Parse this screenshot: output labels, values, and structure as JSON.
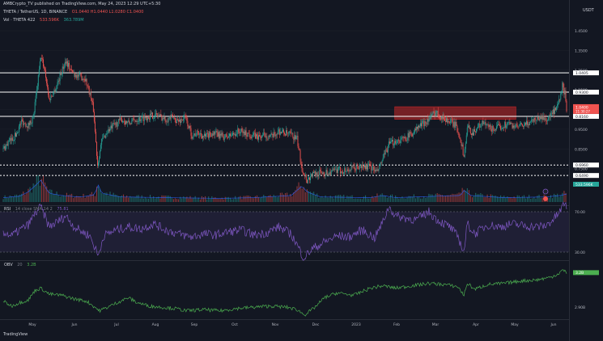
{
  "header": {
    "publisher_line": "AMBCrypto_TV published on TradingView.com, May 24, 2023 12:29 UTC+5:30",
    "symbol_label": "THETA / TetherUS, 1D, BINANCE",
    "ohlc_label": "O1.0440 H1.0440 L1.0280 C1.0400",
    "volume_label": "Vol · THETA 422",
    "volume_values": [
      "533.596K",
      "363.789M"
    ]
  },
  "price_axis": {
    "currency": "USDT",
    "labels": [
      "1.4500",
      "1.3500",
      "1.2500",
      "1.1500",
      "1.0500",
      "0.9500",
      "0.8500",
      "0.7500"
    ],
    "level_labels": [
      "1.0405",
      "0.9300",
      "0.8160",
      "0.6960",
      "0.6490"
    ],
    "current_price": "1.0400",
    "current_sub": "11:30:27",
    "volume_tag": "533.596K"
  },
  "levels": [
    {
      "value": 1.236,
      "style": "solid"
    },
    {
      "value": 1.138,
      "style": "solid"
    },
    {
      "value": 1.015,
      "style": "solid"
    },
    {
      "value": 0.768,
      "style": "dotted"
    },
    {
      "value": 0.715,
      "style": "dotted"
    }
  ],
  "zone": {
    "low": 1.0,
    "high": 1.064,
    "x_start": 0.695,
    "x_end": 0.91
  },
  "rsi": {
    "label": "RSI",
    "params": "14 close SMA 14 2",
    "value": "75.81",
    "axis_labels": [
      "70.00",
      "30.00"
    ]
  },
  "obv": {
    "label": "OBV",
    "params": "20",
    "value": "3.2B",
    "axis_labels": [
      "3.20B",
      "2.90B"
    ]
  },
  "time_axis": [
    "May",
    "Jun",
    "Jul",
    "Aug",
    "Sep",
    "Oct",
    "Nov",
    "Dec",
    "2023",
    "Feb",
    "Mar",
    "Apr",
    "May",
    "Jun"
  ],
  "footer": "TradingView",
  "colors": {
    "background": "#131722",
    "up": "#26a69a",
    "down": "#ef5350",
    "rsi_line": "#7e57c2",
    "obv_line": "#4caf50",
    "zone": "#c62828"
  },
  "chart_data": {
    "type": "candlestick",
    "title": "THETA / TetherUS, 1D, BINANCE",
    "xlabel": "",
    "ylabel": "USDT",
    "ylim": [
      0.65,
      1.45
    ],
    "rsi_range": [
      0,
      100
    ],
    "series": [
      {
        "name": "THETA / TetherUS",
        "anchors": [
          [
            0,
            0.85
          ],
          [
            8,
            0.89
          ],
          [
            15,
            0.92
          ],
          [
            22,
            0.99
          ],
          [
            30,
            0.97
          ],
          [
            36,
            1.01
          ],
          [
            40,
            1.14
          ],
          [
            45,
            1.32
          ],
          [
            50,
            1.25
          ],
          [
            55,
            1.1
          ],
          [
            62,
            1.15
          ],
          [
            68,
            1.22
          ],
          [
            75,
            1.3
          ],
          [
            82,
            1.24
          ],
          [
            90,
            1.22
          ],
          [
            98,
            1.21
          ],
          [
            104,
            1.13
          ],
          [
            108,
            1.05
          ],
          [
            113,
            0.77
          ],
          [
            118,
            0.89
          ],
          [
            125,
            0.94
          ],
          [
            133,
            0.97
          ],
          [
            142,
            1.0
          ],
          [
            150,
            0.98
          ],
          [
            160,
            1.0
          ],
          [
            170,
            1.01
          ],
          [
            178,
            1.02
          ],
          [
            186,
            1.02
          ],
          [
            194,
            1.0
          ],
          [
            202,
            1.01
          ],
          [
            210,
            0.99
          ],
          [
            218,
            1.01
          ],
          [
            226,
            0.92
          ],
          [
            234,
            0.93
          ],
          [
            242,
            0.91
          ],
          [
            250,
            0.93
          ],
          [
            258,
            0.92
          ],
          [
            266,
            0.91
          ],
          [
            274,
            0.92
          ],
          [
            282,
            0.94
          ],
          [
            290,
            0.93
          ],
          [
            298,
            0.92
          ],
          [
            306,
            0.91
          ],
          [
            314,
            0.92
          ],
          [
            322,
            0.91
          ],
          [
            330,
            0.94
          ],
          [
            338,
            0.93
          ],
          [
            345,
            0.92
          ],
          [
            352,
            0.9
          ],
          [
            358,
            0.75
          ],
          [
            364,
            0.69
          ],
          [
            370,
            0.72
          ],
          [
            380,
            0.73
          ],
          [
            390,
            0.73
          ],
          [
            400,
            0.74
          ],
          [
            410,
            0.74
          ],
          [
            420,
            0.75
          ],
          [
            430,
            0.76
          ],
          [
            440,
            0.76
          ],
          [
            448,
            0.73
          ],
          [
            455,
            0.8
          ],
          [
            462,
            0.87
          ],
          [
            470,
            0.89
          ],
          [
            480,
            0.9
          ],
          [
            490,
            0.93
          ],
          [
            500,
            0.97
          ],
          [
            510,
            1.0
          ],
          [
            518,
            1.04
          ],
          [
            526,
            1.01
          ],
          [
            534,
            0.99
          ],
          [
            542,
            0.97
          ],
          [
            548,
            0.9
          ],
          [
            552,
            0.81
          ],
          [
            556,
            0.96
          ],
          [
            562,
            0.93
          ],
          [
            568,
            0.96
          ],
          [
            575,
            0.98
          ],
          [
            585,
            0.95
          ],
          [
            595,
            0.96
          ],
          [
            605,
            0.98
          ],
          [
            615,
            0.96
          ],
          [
            625,
            0.97
          ],
          [
            635,
            1.0
          ],
          [
            645,
            1.01
          ],
          [
            652,
            1.0
          ],
          [
            658,
            1.03
          ],
          [
            663,
            1.05
          ],
          [
            667,
            1.1
          ],
          [
            670,
            1.17
          ],
          [
            673,
            1.13
          ],
          [
            675,
            1.04
          ]
        ]
      },
      {
        "name": "Vol · THETA",
        "anchors": [
          [
            0,
            6
          ],
          [
            20,
            8
          ],
          [
            30,
            14
          ],
          [
            38,
            22
          ],
          [
            45,
            30
          ],
          [
            55,
            12
          ],
          [
            70,
            9
          ],
          [
            90,
            7
          ],
          [
            100,
            8
          ],
          [
            110,
            10
          ],
          [
            113,
            26
          ],
          [
            118,
            12
          ],
          [
            140,
            7
          ],
          [
            200,
            6
          ],
          [
            260,
            5
          ],
          [
            300,
            6
          ],
          [
            345,
            9
          ],
          [
            358,
            22
          ],
          [
            364,
            14
          ],
          [
            380,
            7
          ],
          [
            440,
            6
          ],
          [
            455,
            9
          ],
          [
            470,
            6
          ],
          [
            520,
            8
          ],
          [
            548,
            9
          ],
          [
            552,
            16
          ],
          [
            560,
            9
          ],
          [
            600,
            6
          ],
          [
            650,
            7
          ],
          [
            668,
            9
          ],
          [
            675,
            11
          ]
        ]
      },
      {
        "name": "RSI",
        "anchors": [
          [
            0,
            50
          ],
          [
            10,
            46
          ],
          [
            20,
            52
          ],
          [
            30,
            57
          ],
          [
            38,
            68
          ],
          [
            45,
            75
          ],
          [
            55,
            55
          ],
          [
            65,
            60
          ],
          [
            75,
            66
          ],
          [
            85,
            55
          ],
          [
            95,
            50
          ],
          [
            104,
            46
          ],
          [
            110,
            34
          ],
          [
            114,
            26
          ],
          [
            120,
            46
          ],
          [
            135,
            52
          ],
          [
            150,
            55
          ],
          [
            165,
            53
          ],
          [
            180,
            58
          ],
          [
            195,
            52
          ],
          [
            210,
            48
          ],
          [
            225,
            45
          ],
          [
            240,
            48
          ],
          [
            255,
            47
          ],
          [
            270,
            50
          ],
          [
            285,
            52
          ],
          [
            300,
            47
          ],
          [
            315,
            49
          ],
          [
            330,
            55
          ],
          [
            345,
            48
          ],
          [
            354,
            34
          ],
          [
            360,
            24
          ],
          [
            370,
            33
          ],
          [
            385,
            40
          ],
          [
            400,
            46
          ],
          [
            415,
            45
          ],
          [
            430,
            52
          ],
          [
            445,
            44
          ],
          [
            455,
            60
          ],
          [
            462,
            75
          ],
          [
            470,
            66
          ],
          [
            480,
            64
          ],
          [
            495,
            62
          ],
          [
            510,
            70
          ],
          [
            520,
            62
          ],
          [
            535,
            55
          ],
          [
            545,
            45
          ],
          [
            552,
            30
          ],
          [
            556,
            58
          ],
          [
            565,
            48
          ],
          [
            580,
            57
          ],
          [
            595,
            55
          ],
          [
            610,
            58
          ],
          [
            625,
            56
          ],
          [
            640,
            55
          ],
          [
            650,
            56
          ],
          [
            660,
            63
          ],
          [
            667,
            70
          ],
          [
            672,
            78
          ],
          [
            675,
            76
          ]
        ]
      },
      {
        "name": "OBV",
        "anchors": [
          [
            0,
            2.95
          ],
          [
            10,
            2.91
          ],
          [
            20,
            2.94
          ],
          [
            30,
            2.96
          ],
          [
            38,
            3.04
          ],
          [
            45,
            3.06
          ],
          [
            55,
            3.01
          ],
          [
            70,
            3.0
          ],
          [
            85,
            2.97
          ],
          [
            100,
            2.95
          ],
          [
            110,
            2.9
          ],
          [
            115,
            2.87
          ],
          [
            125,
            2.9
          ],
          [
            140,
            2.95
          ],
          [
            150,
            2.98
          ],
          [
            160,
            2.94
          ],
          [
            175,
            2.91
          ],
          [
            190,
            2.9
          ],
          [
            205,
            2.89
          ],
          [
            220,
            2.87
          ],
          [
            240,
            2.88
          ],
          [
            260,
            2.87
          ],
          [
            280,
            2.89
          ],
          [
            300,
            2.9
          ],
          [
            320,
            2.91
          ],
          [
            340,
            2.9
          ],
          [
            352,
            2.88
          ],
          [
            358,
            2.85
          ],
          [
            362,
            2.84
          ],
          [
            372,
            2.89
          ],
          [
            385,
            2.98
          ],
          [
            400,
            3.02
          ],
          [
            420,
            3.0
          ],
          [
            440,
            3.06
          ],
          [
            455,
            3.08
          ],
          [
            470,
            3.06
          ],
          [
            490,
            3.08
          ],
          [
            510,
            3.1
          ],
          [
            530,
            3.09
          ],
          [
            545,
            3.07
          ],
          [
            552,
            3.0
          ],
          [
            556,
            3.1
          ],
          [
            565,
            3.05
          ],
          [
            580,
            3.09
          ],
          [
            600,
            3.1
          ],
          [
            620,
            3.12
          ],
          [
            640,
            3.13
          ],
          [
            655,
            3.15
          ],
          [
            665,
            3.18
          ],
          [
            670,
            3.21
          ],
          [
            675,
            3.19
          ]
        ]
      }
    ]
  }
}
